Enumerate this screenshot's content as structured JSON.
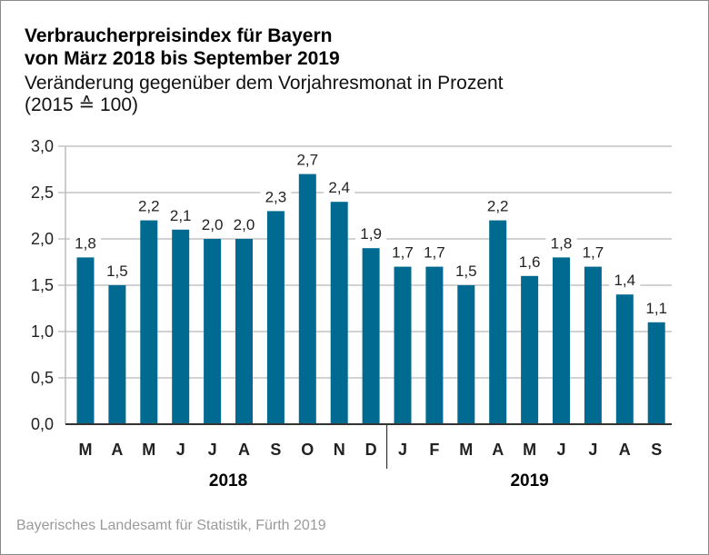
{
  "header": {
    "title_line1": "Verbraucherpreisindex für Bayern",
    "title_line2": "von März 2018 bis September 2019",
    "subtitle_line1": "Veränderung gegenüber dem Vorjahresmonat in Prozent",
    "subtitle_line2": "(2015 ≙ 100)"
  },
  "footer": {
    "source": "Bayerisches Landesamt für Statistik, Fürth 2019"
  },
  "colors": {
    "bar": "#006a91",
    "grid": "#c4c4c4",
    "axis": "#333333"
  },
  "chart_data": {
    "type": "bar",
    "title": "Verbraucherpreisindex für Bayern von März 2018 bis September 2019",
    "subtitle": "Veränderung gegenüber dem Vorjahresmonat in Prozent (2015 ≙ 100)",
    "xlabel": "",
    "ylabel": "",
    "ylim": [
      0,
      3.0
    ],
    "yticks": [
      0,
      0.5,
      1.0,
      1.5,
      2.0,
      2.5,
      3.0
    ],
    "ytick_labels": [
      "0,0",
      "0,5",
      "1,0",
      "1,5",
      "2,0",
      "2,5",
      "3,0"
    ],
    "grid": true,
    "categories": [
      "M",
      "A",
      "M",
      "J",
      "J",
      "A",
      "S",
      "O",
      "N",
      "D",
      "J",
      "F",
      "M",
      "A",
      "M",
      "J",
      "J",
      "A",
      "S"
    ],
    "values": [
      1.8,
      1.5,
      2.2,
      2.1,
      2.0,
      2.0,
      2.3,
      2.7,
      2.4,
      1.9,
      1.7,
      1.7,
      1.5,
      2.2,
      1.6,
      1.8,
      1.7,
      1.4,
      1.1
    ],
    "value_labels": [
      "1,8",
      "1,5",
      "2,2",
      "2,1",
      "2,0",
      "2,0",
      "2,3",
      "2,7",
      "2,4",
      "1,9",
      "1,7",
      "1,7",
      "1,5",
      "2,2",
      "1,6",
      "1,8",
      "1,7",
      "1,4",
      "1,1"
    ],
    "groups": [
      {
        "label": "2018",
        "start": 0,
        "end": 9
      },
      {
        "label": "2019",
        "start": 10,
        "end": 18
      }
    ]
  }
}
